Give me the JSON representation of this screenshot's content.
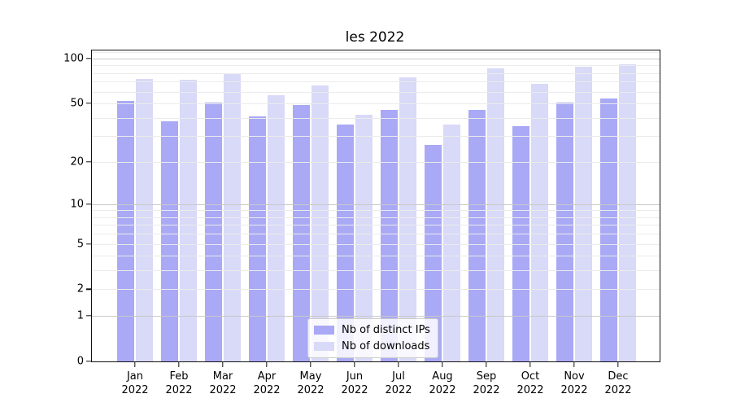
{
  "title": "les 2022",
  "chart_data": {
    "type": "bar",
    "title": "les 2022",
    "scale": "log1p",
    "grid": true,
    "legend_position": "lower center",
    "categories": [
      "Jan",
      "Feb",
      "Mar",
      "Apr",
      "May",
      "Jun",
      "Jul",
      "Aug",
      "Sep",
      "Oct",
      "Nov",
      "Dec"
    ],
    "x_year": "2022",
    "series": [
      {
        "name": "Nb of distinct IPs",
        "color": "#a9a9f6",
        "values": [
          52,
          38,
          51,
          41,
          49,
          36,
          45,
          26,
          45,
          35,
          51,
          54
        ]
      },
      {
        "name": "Nb of downloads",
        "color": "#d9d9f8",
        "values": [
          73,
          72,
          79,
          57,
          66,
          42,
          75,
          36,
          86,
          68,
          88,
          92
        ]
      }
    ],
    "ylabel": "",
    "xlabel": "",
    "yticks": [
      100,
      50,
      20,
      10,
      5,
      2,
      1,
      0
    ],
    "ylim": [
      0,
      113.3
    ],
    "gridlines": {
      "major": [
        1,
        10,
        100
      ],
      "minor": [
        2,
        3,
        4,
        5,
        6,
        7,
        8,
        9,
        20,
        30,
        40,
        50,
        60,
        70,
        80,
        90,
        110
      ]
    }
  }
}
